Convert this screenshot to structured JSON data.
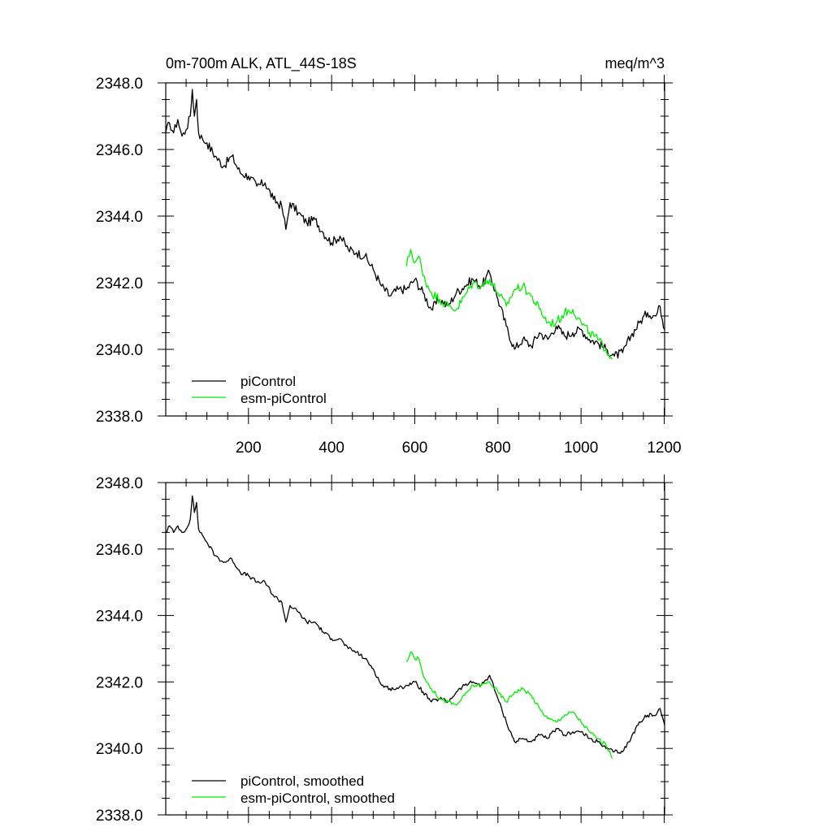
{
  "chart_data": [
    {
      "type": "line",
      "title": "0m-700m ALK, ATL_44S-18S",
      "units": "meq/m^3",
      "xlim": [
        1,
        1201
      ],
      "ylim": [
        2338.0,
        2348.0
      ],
      "xticks": [
        200,
        400,
        600,
        800,
        1000,
        1200
      ],
      "xtick_labels": [
        "200",
        "400",
        "600",
        "800",
        "1000",
        "1200"
      ],
      "yticks": [
        2338,
        2340,
        2342,
        2344,
        2346,
        2348
      ],
      "ytick_labels": [
        "2338.0",
        "2340.0",
        "2342.0",
        "2344.0",
        "2346.0",
        "2348.0"
      ],
      "legend_position": "bottom-left",
      "series": [
        {
          "name": "piControl",
          "color": "#000000",
          "x": [
            1,
            10,
            20,
            30,
            40,
            50,
            60,
            65,
            70,
            75,
            80,
            90,
            100,
            120,
            140,
            160,
            180,
            200,
            220,
            240,
            260,
            280,
            290,
            300,
            320,
            340,
            360,
            380,
            400,
            420,
            440,
            460,
            480,
            500,
            520,
            540,
            560,
            580,
            600,
            620,
            640,
            660,
            680,
            700,
            720,
            740,
            760,
            780,
            800,
            820,
            840,
            860,
            880,
            900,
            920,
            940,
            960,
            980,
            1000,
            1020,
            1040,
            1060,
            1080,
            1100,
            1120,
            1140,
            1160,
            1180,
            1190,
            1201
          ],
          "values": [
            2346.5,
            2346.8,
            2346.5,
            2346.9,
            2346.4,
            2346.6,
            2347.0,
            2347.8,
            2347.0,
            2347.5,
            2346.5,
            2346.3,
            2346.2,
            2345.8,
            2345.5,
            2345.8,
            2345.3,
            2345.2,
            2344.9,
            2345.0,
            2344.5,
            2344.3,
            2343.6,
            2344.4,
            2344.1,
            2343.8,
            2343.9,
            2343.5,
            2343.2,
            2343.4,
            2343.0,
            2342.9,
            2342.8,
            2342.4,
            2341.9,
            2341.6,
            2341.8,
            2341.8,
            2342.1,
            2341.7,
            2341.2,
            2341.5,
            2341.3,
            2341.7,
            2341.9,
            2342.1,
            2341.9,
            2342.3,
            2341.5,
            2340.7,
            2340.0,
            2340.3,
            2340.1,
            2340.5,
            2340.3,
            2340.7,
            2340.4,
            2340.5,
            2340.6,
            2340.3,
            2340.2,
            2340.0,
            2339.8,
            2339.9,
            2340.4,
            2340.8,
            2341.1,
            2341.0,
            2341.3,
            2340.6
          ]
        },
        {
          "name": "esm-piControl",
          "color": "#00ee00",
          "x": [
            580,
            590,
            600,
            610,
            620,
            640,
            660,
            680,
            700,
            720,
            740,
            760,
            780,
            800,
            820,
            840,
            860,
            880,
            900,
            920,
            940,
            960,
            980,
            1000,
            1020,
            1040,
            1060,
            1075
          ],
          "values": [
            2342.5,
            2343.0,
            2342.6,
            2342.8,
            2342.2,
            2341.7,
            2341.5,
            2341.3,
            2341.2,
            2341.6,
            2342.0,
            2341.9,
            2342.1,
            2341.7,
            2341.3,
            2341.8,
            2341.9,
            2341.6,
            2341.2,
            2340.8,
            2340.8,
            2341.1,
            2341.2,
            2340.8,
            2340.5,
            2340.3,
            2340.0,
            2339.7
          ]
        }
      ]
    },
    {
      "type": "line",
      "xlim": [
        1,
        1201
      ],
      "ylim": [
        2338.0,
        2348.0
      ],
      "yticks": [
        2338,
        2340,
        2342,
        2344,
        2346,
        2348
      ],
      "ytick_labels": [
        "2338.0",
        "2340.0",
        "2342.0",
        "2344.0",
        "2346.0",
        "2348.0"
      ],
      "legend_position": "bottom-left",
      "series": [
        {
          "name": "piControl, smoothed",
          "color": "#000000",
          "x": [
            1,
            10,
            20,
            30,
            40,
            50,
            60,
            65,
            70,
            75,
            80,
            90,
            100,
            120,
            140,
            160,
            180,
            200,
            220,
            240,
            260,
            280,
            290,
            300,
            320,
            340,
            360,
            380,
            400,
            420,
            440,
            460,
            480,
            500,
            520,
            540,
            560,
            580,
            600,
            620,
            640,
            660,
            680,
            700,
            720,
            740,
            760,
            780,
            800,
            820,
            840,
            860,
            880,
            900,
            920,
            940,
            960,
            980,
            1000,
            1020,
            1040,
            1060,
            1080,
            1100,
            1120,
            1140,
            1160,
            1180,
            1190,
            1201
          ],
          "values": [
            2346.5,
            2346.7,
            2346.5,
            2346.7,
            2346.5,
            2346.6,
            2346.9,
            2347.6,
            2347.1,
            2347.4,
            2346.6,
            2346.4,
            2346.2,
            2345.8,
            2345.6,
            2345.7,
            2345.3,
            2345.2,
            2345.0,
            2345.0,
            2344.6,
            2344.4,
            2343.8,
            2344.3,
            2344.1,
            2343.8,
            2343.8,
            2343.5,
            2343.3,
            2343.3,
            2343.0,
            2342.9,
            2342.7,
            2342.4,
            2341.9,
            2341.8,
            2341.8,
            2341.9,
            2342.0,
            2341.7,
            2341.4,
            2341.5,
            2341.4,
            2341.7,
            2341.9,
            2342.0,
            2341.9,
            2342.2,
            2341.5,
            2340.8,
            2340.2,
            2340.3,
            2340.2,
            2340.4,
            2340.3,
            2340.6,
            2340.4,
            2340.5,
            2340.5,
            2340.3,
            2340.2,
            2340.0,
            2339.9,
            2339.9,
            2340.3,
            2340.8,
            2341.0,
            2341.0,
            2341.2,
            2340.7
          ]
        },
        {
          "name": "esm-piControl, smoothed",
          "color": "#00ee00",
          "x": [
            580,
            590,
            600,
            610,
            620,
            640,
            660,
            680,
            700,
            720,
            740,
            760,
            780,
            800,
            820,
            840,
            860,
            880,
            900,
            920,
            940,
            960,
            980,
            1000,
            1020,
            1040,
            1060,
            1075
          ],
          "values": [
            2342.6,
            2342.9,
            2342.7,
            2342.7,
            2342.2,
            2341.8,
            2341.5,
            2341.4,
            2341.3,
            2341.6,
            2341.9,
            2341.9,
            2342.0,
            2341.7,
            2341.4,
            2341.7,
            2341.8,
            2341.6,
            2341.2,
            2340.9,
            2340.8,
            2341.0,
            2341.1,
            2340.8,
            2340.5,
            2340.3,
            2340.1,
            2339.7
          ]
        }
      ]
    }
  ]
}
